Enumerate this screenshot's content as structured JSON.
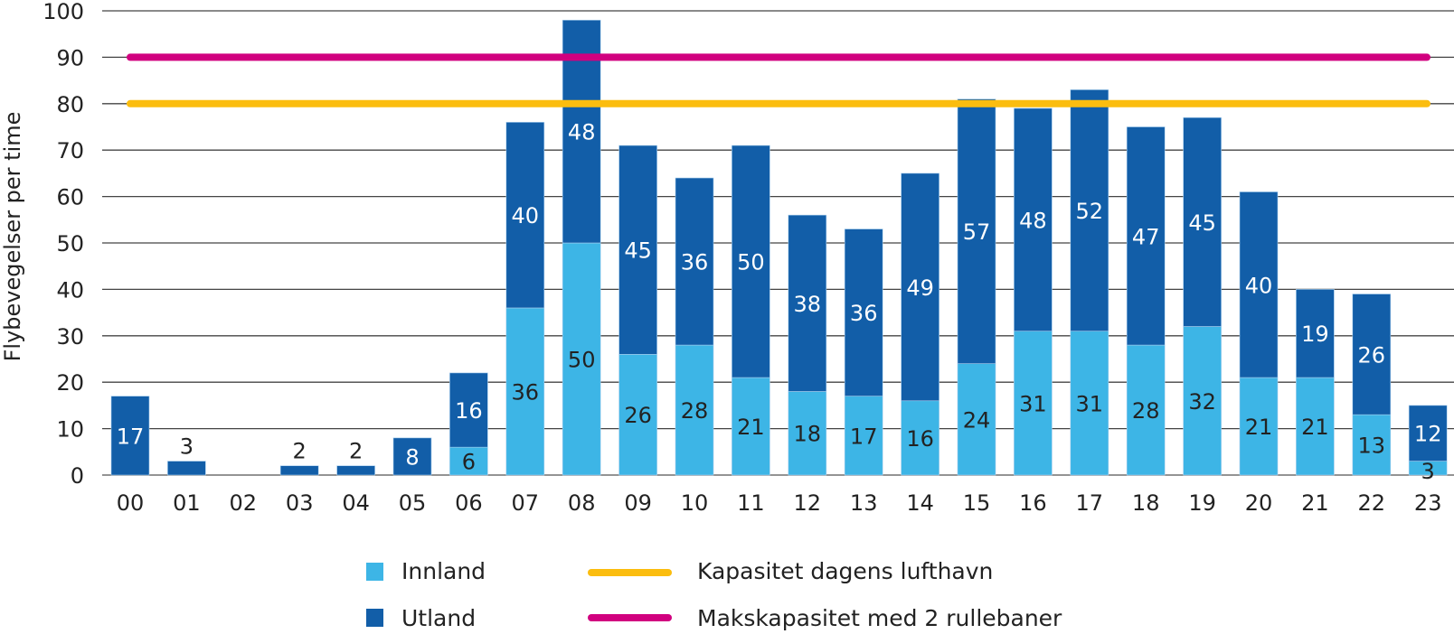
{
  "chart_data": {
    "type": "bar",
    "stacked": true,
    "title": "",
    "xlabel": "",
    "ylabel": "Flybevegelser per time",
    "ylim": [
      0,
      100
    ],
    "yticks": [
      0,
      10,
      20,
      30,
      40,
      50,
      60,
      70,
      80,
      90,
      100
    ],
    "grid": true,
    "categories": [
      "00",
      "01",
      "02",
      "03",
      "04",
      "05",
      "06",
      "07",
      "08",
      "09",
      "10",
      "11",
      "12",
      "13",
      "14",
      "15",
      "16",
      "17",
      "18",
      "19",
      "20",
      "21",
      "22",
      "23"
    ],
    "series": [
      {
        "name": "Innland",
        "color": "#3db5e6",
        "label_color": "#222222",
        "values": [
          0,
          0,
          0,
          0,
          0,
          0,
          6,
          36,
          50,
          26,
          28,
          21,
          18,
          17,
          16,
          24,
          31,
          31,
          28,
          32,
          21,
          21,
          13,
          3
        ]
      },
      {
        "name": "Utland",
        "color": "#125ea8",
        "label_color": "#ffffff",
        "values": [
          17,
          3,
          0,
          2,
          2,
          8,
          16,
          40,
          48,
          45,
          36,
          50,
          38,
          36,
          49,
          57,
          48,
          52,
          47,
          45,
          40,
          19,
          26,
          12
        ]
      }
    ],
    "reference_lines": [
      {
        "name": "Kapasitet dagens lufthavn",
        "value": 80,
        "color": "#fbbd0f"
      },
      {
        "name": "Makskapasitet med 2 rullebaner",
        "value": 90,
        "color": "#d1007f"
      }
    ],
    "legend": {
      "position": "bottom",
      "items": [
        "Innland",
        "Utland",
        "Kapasitet dagens lufthavn",
        "Makskapasitet med 2 rullebaner"
      ]
    }
  }
}
